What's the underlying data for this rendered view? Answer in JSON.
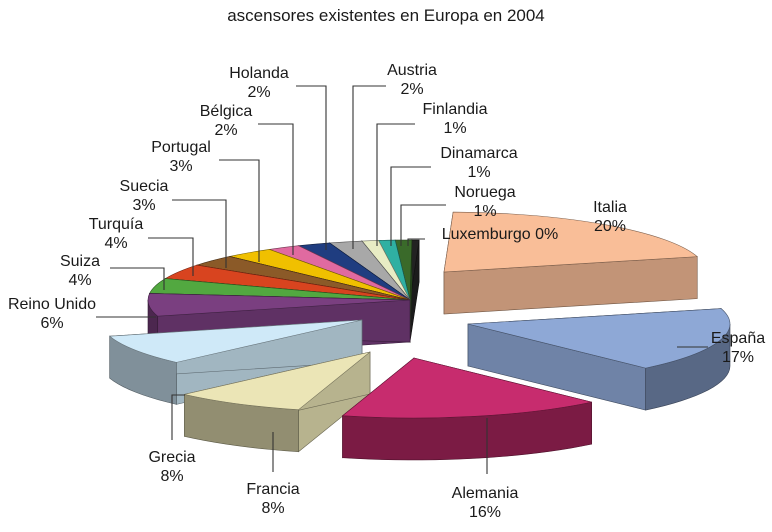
{
  "chart_data": {
    "type": "pie",
    "title": "ascensores existentes en Europa en 2004",
    "categories": [
      "Italia",
      "España",
      "Alemania",
      "Francia",
      "Grecia",
      "Reino Unido",
      "Suiza",
      "Turquía",
      "Suecia",
      "Portugal",
      "Bélgica",
      "Holanda",
      "Austria",
      "Finlandia",
      "Dinamarca",
      "Noruega",
      "Luxemburgo"
    ],
    "values": [
      20,
      17,
      16,
      8,
      8,
      6,
      4,
      4,
      3,
      3,
      2,
      2,
      2,
      1,
      1,
      1,
      0
    ],
    "value_labels": [
      "20%",
      "17%",
      "16%",
      "8%",
      "8%",
      "6%",
      "4%",
      "4%",
      "3%",
      "3%",
      "2%",
      "2%",
      "2%",
      "1%",
      "1%",
      "1%",
      "0%"
    ],
    "colors": [
      "#f9be98",
      "#8ea8d6",
      "#c72c6e",
      "#ebe5b6",
      "#cfe9f8",
      "#7a3f80",
      "#52a840",
      "#d8441f",
      "#8b5a28",
      "#f0c000",
      "#e06aa0",
      "#1f3d80",
      "#a8a8a8",
      "#e8ecc4",
      "#2fb0a2",
      "#3a6a2a",
      "#222222"
    ],
    "exploded": [
      "Italia",
      "España",
      "Alemania",
      "Francia",
      "Grecia"
    ],
    "style": "3d-exploded",
    "legend": "none"
  }
}
